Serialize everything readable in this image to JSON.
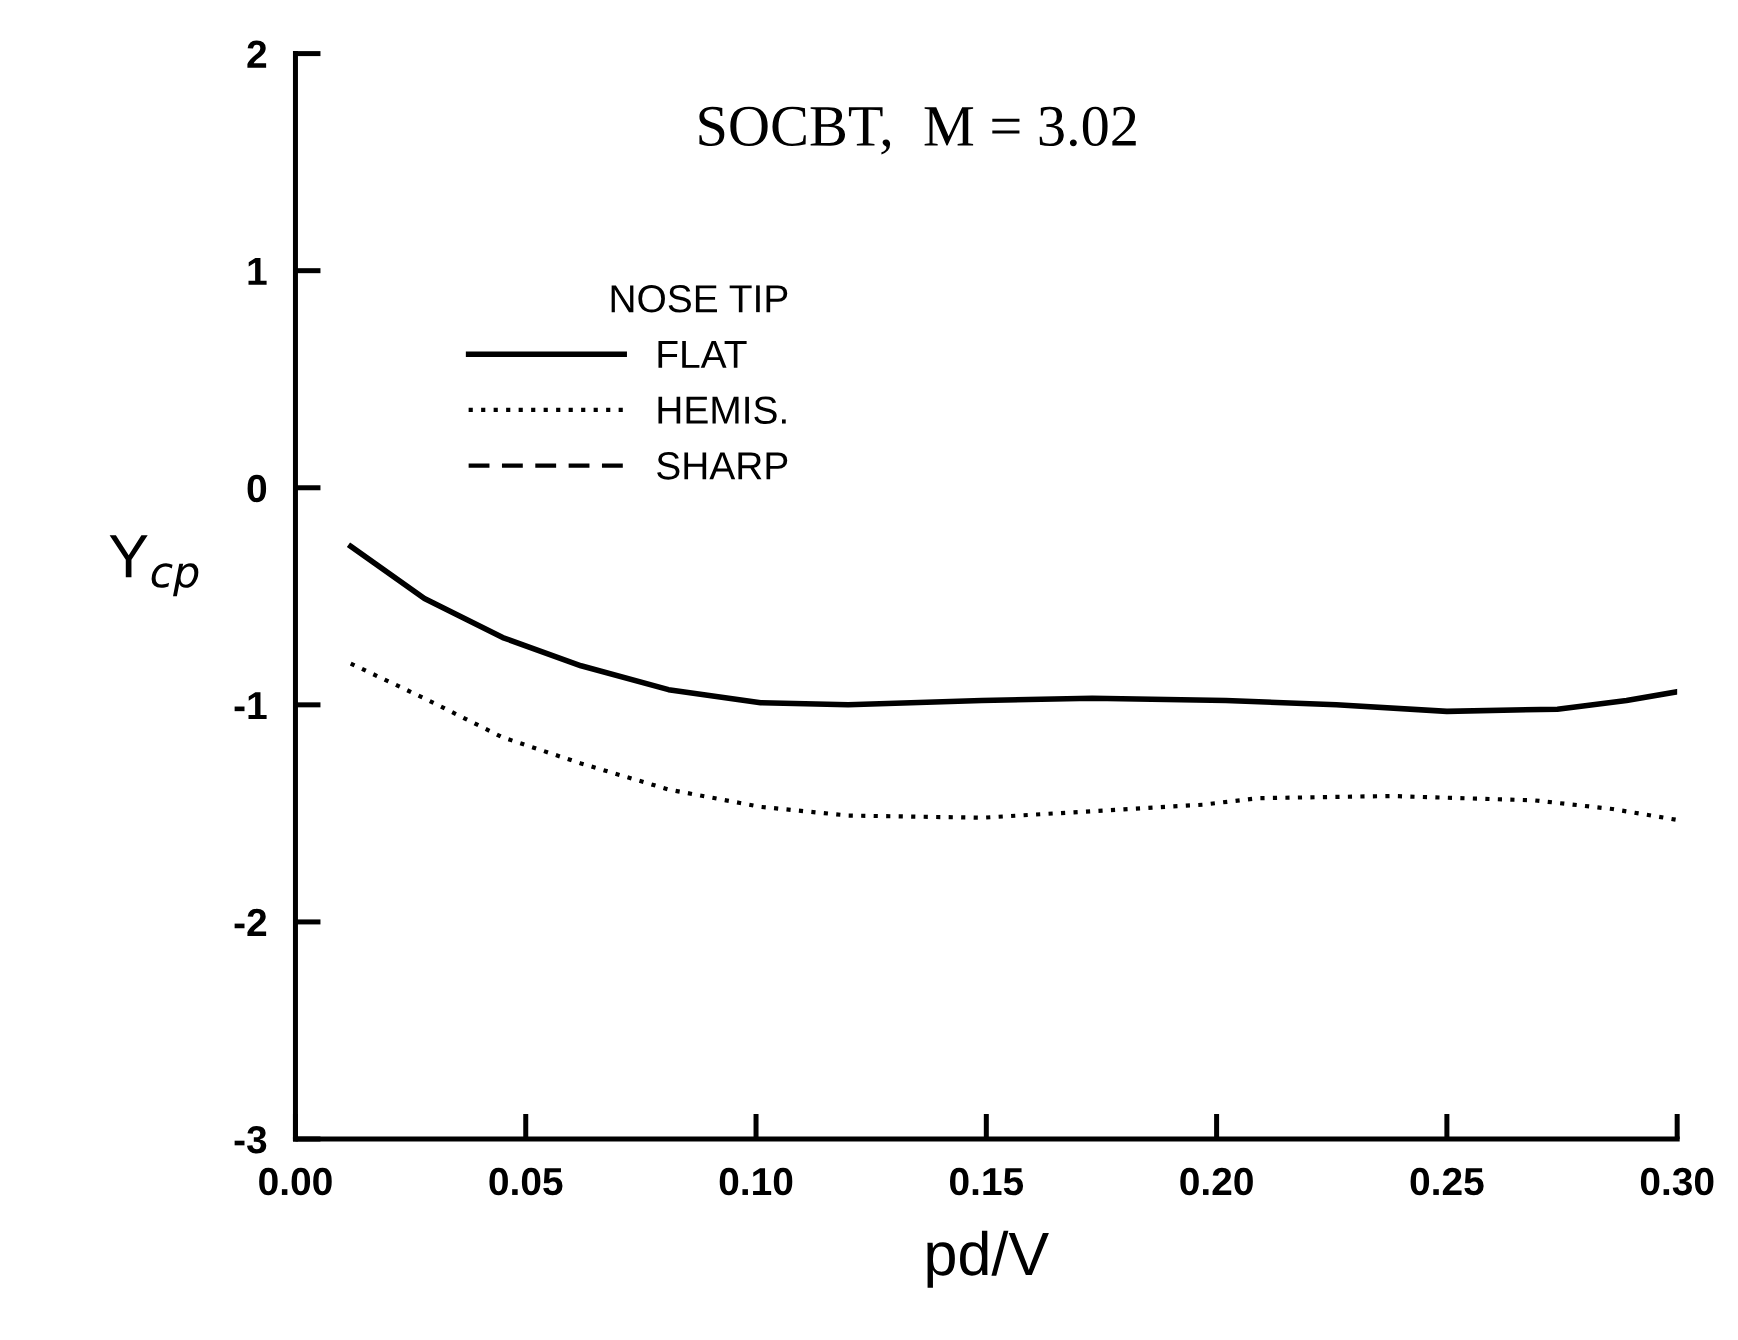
{
  "chart_data": {
    "type": "line",
    "title": "SOCBT,  M = 3.02",
    "xlabel": "pd/V",
    "ylabel": "Y$_{cp}$",
    "legend_title": "NOSE TIP",
    "xlim": [
      0,
      0.3
    ],
    "xticks": [
      {
        "value": 0,
        "label": "0.00"
      },
      0.05,
      {
        "value": 0.1,
        "label": "0.10"
      },
      0.15,
      {
        "value": 0.2,
        "label": "0.20"
      },
      0.25,
      {
        "value": 0.3,
        "label": "0.30"
      }
    ],
    "ylim": [
      -3,
      2
    ],
    "yticks": [
      -3,
      -2,
      -1,
      0,
      1,
      2
    ],
    "grid": false,
    "legend": "top left",
    "marker": "none",
    "series": [
      {
        "name": "FLAT",
        "color": "#000000",
        "line_style": "solid",
        "x": [
          0.012,
          0.028,
          0.045,
          0.062,
          0.081,
          0.101,
          0.12,
          0.149,
          0.173,
          0.202,
          0.226,
          0.25,
          0.274,
          0.289,
          0.3
        ],
        "values": [
          -0.27,
          -0.51,
          -0.69,
          -0.82,
          -0.93,
          -0.99,
          -1.0,
          -0.98,
          -0.97,
          -0.98,
          -1.0,
          -1.03,
          -1.02,
          -0.98,
          -0.94
        ]
      },
      {
        "name": "HEMIS.",
        "color": "#000000",
        "line_style": "dotted",
        "x": [
          0.012,
          0.028,
          0.045,
          0.062,
          0.081,
          0.101,
          0.12,
          0.149,
          0.173,
          0.197,
          0.209,
          0.238,
          0.269,
          0.286,
          0.3
        ],
        "values": [
          -0.81,
          -0.97,
          -1.15,
          -1.27,
          -1.39,
          -1.47,
          -1.51,
          -1.52,
          -1.49,
          -1.46,
          -1.43,
          -1.42,
          -1.44,
          -1.48,
          -1.53
        ]
      },
      {
        "name": "SHARP",
        "color": "#000000",
        "line_style": "dashed"
      }
    ]
  }
}
